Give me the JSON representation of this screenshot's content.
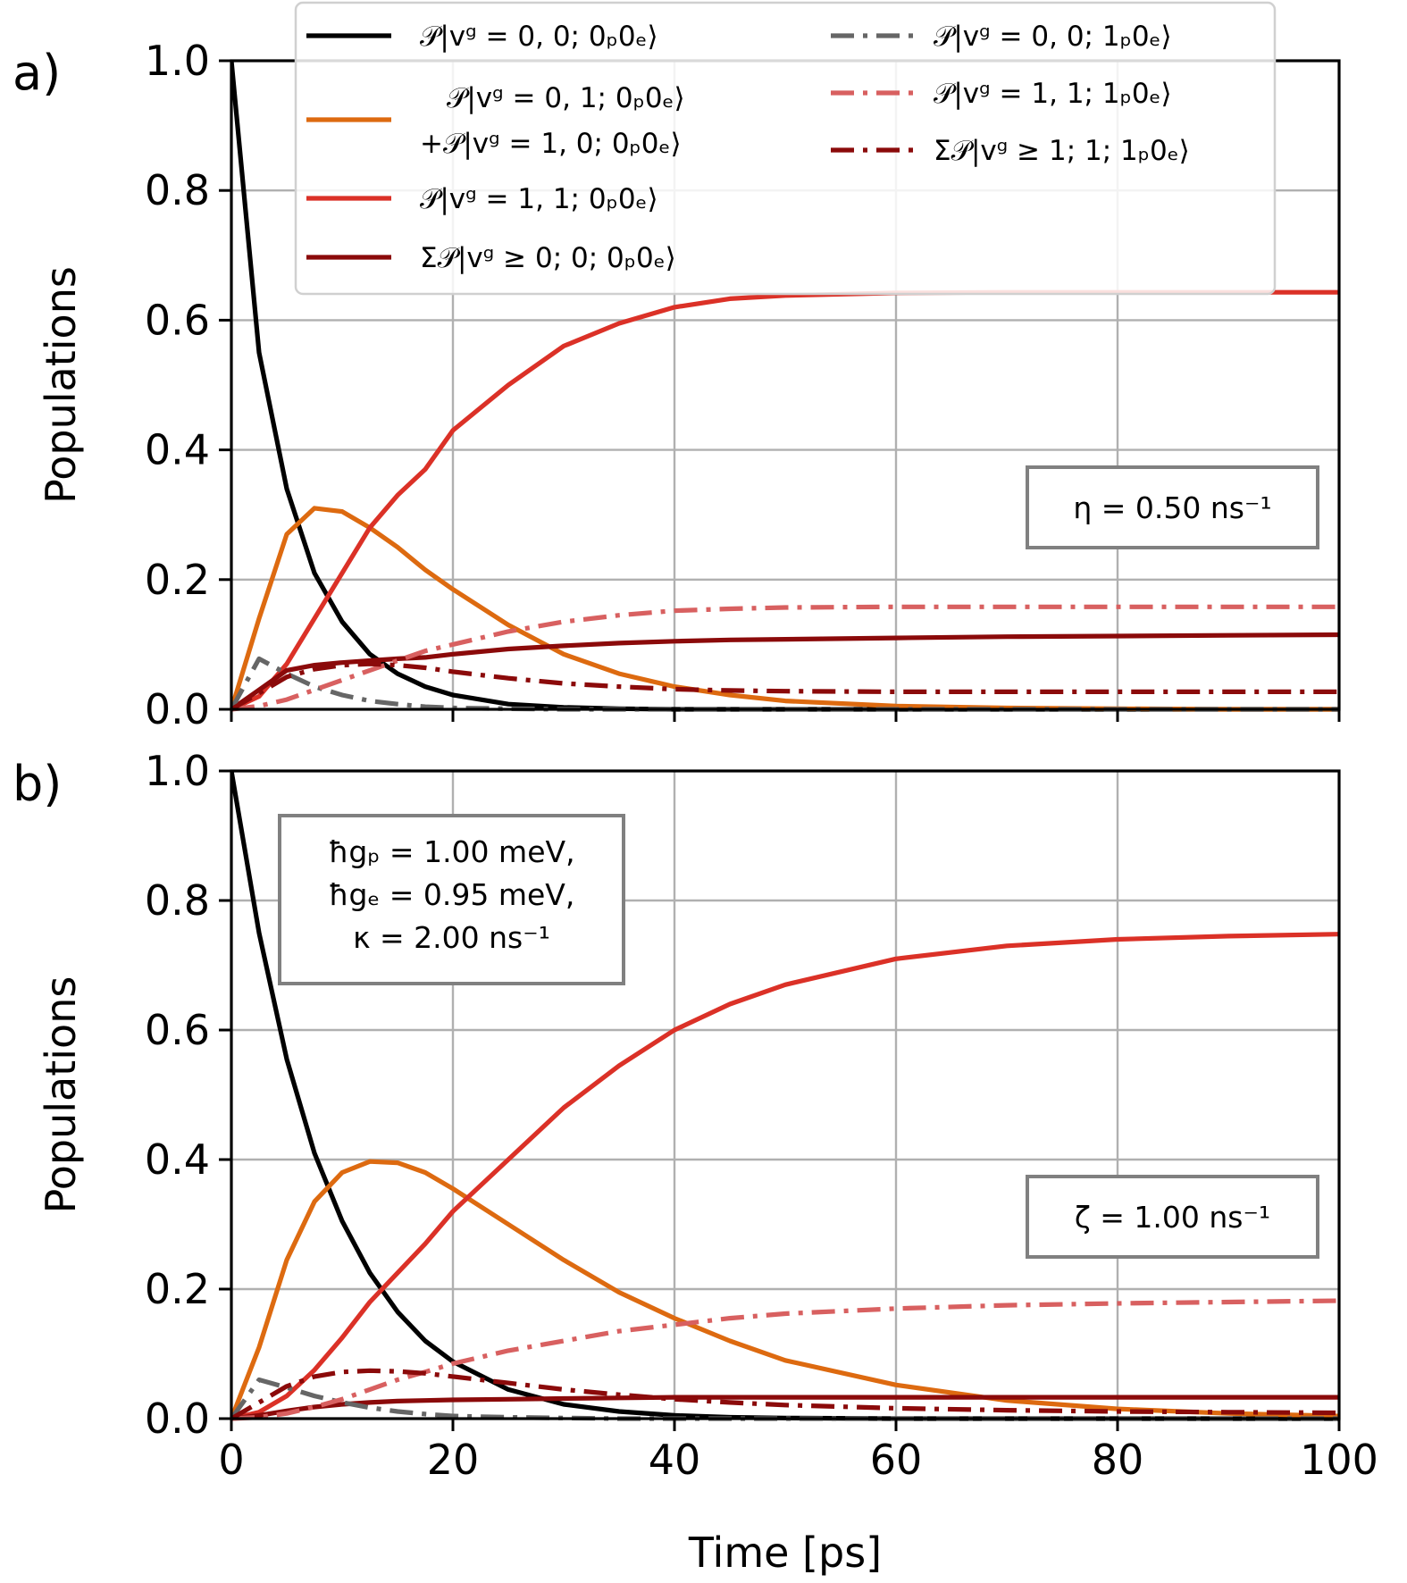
{
  "chart_data": [
    {
      "panel": "a)",
      "type": "line",
      "xlabel": "",
      "ylabel": "Populations",
      "xlim": [
        0,
        100
      ],
      "ylim": [
        0,
        1.0
      ],
      "xticks": [
        0,
        20,
        40,
        60,
        80,
        100
      ],
      "yticks": [
        0.0,
        0.2,
        0.4,
        0.6,
        0.8,
        1.0
      ],
      "ytick_labels": [
        "0.0",
        "0.2",
        "0.4",
        "0.6",
        "0.8",
        "1.0"
      ],
      "grid": true,
      "legend_placement": "top",
      "annotation": "η = 0.50 ns⁻¹",
      "annotation_placement": "center-right",
      "x": [
        0,
        2.5,
        5,
        7.5,
        10,
        12.5,
        15,
        17.5,
        20,
        25,
        30,
        35,
        40,
        45,
        50,
        60,
        70,
        80,
        90,
        100
      ],
      "series": [
        {
          "key": "s1",
          "values": [
            1.0,
            0.55,
            0.34,
            0.21,
            0.135,
            0.085,
            0.055,
            0.035,
            0.022,
            0.008,
            0.003,
            0.001,
            0.0,
            0.0,
            0.0,
            0.0,
            0.0,
            0.0,
            0.0,
            0.0
          ]
        },
        {
          "key": "s2",
          "values": [
            0.0,
            0.14,
            0.27,
            0.31,
            0.305,
            0.28,
            0.25,
            0.215,
            0.185,
            0.13,
            0.085,
            0.055,
            0.035,
            0.022,
            0.013,
            0.005,
            0.002,
            0.001,
            0.0,
            0.0
          ]
        },
        {
          "key": "s3",
          "values": [
            0.0,
            0.02,
            0.07,
            0.14,
            0.21,
            0.28,
            0.33,
            0.37,
            0.43,
            0.5,
            0.56,
            0.595,
            0.62,
            0.633,
            0.638,
            0.642,
            0.643,
            0.643,
            0.643,
            0.643
          ]
        },
        {
          "key": "s4",
          "values": [
            0.0,
            0.03,
            0.06,
            0.068,
            0.072,
            0.075,
            0.078,
            0.08,
            0.085,
            0.093,
            0.098,
            0.102,
            0.105,
            0.107,
            0.108,
            0.11,
            0.112,
            0.113,
            0.114,
            0.115
          ]
        },
        {
          "key": "s5",
          "values": [
            0.0,
            0.078,
            0.055,
            0.035,
            0.022,
            0.013,
            0.008,
            0.004,
            0.002,
            0.001,
            0.0,
            0.0,
            0.0,
            0.0,
            0.0,
            0.0,
            0.0,
            0.0,
            0.0,
            0.0
          ]
        },
        {
          "key": "s6",
          "values": [
            0.0,
            0.005,
            0.015,
            0.03,
            0.045,
            0.06,
            0.075,
            0.09,
            0.1,
            0.12,
            0.135,
            0.145,
            0.152,
            0.155,
            0.157,
            0.158,
            0.158,
            0.158,
            0.158,
            0.158
          ]
        },
        {
          "key": "s7",
          "values": [
            0.0,
            0.025,
            0.05,
            0.062,
            0.068,
            0.07,
            0.068,
            0.064,
            0.058,
            0.048,
            0.04,
            0.035,
            0.031,
            0.029,
            0.028,
            0.027,
            0.027,
            0.027,
            0.027,
            0.027
          ]
        }
      ]
    },
    {
      "panel": "b)",
      "type": "line",
      "xlabel": "Time [ps]",
      "ylabel": "Populations",
      "xlim": [
        0,
        100
      ],
      "ylim": [
        0,
        1.0
      ],
      "xticks": [
        0,
        20,
        40,
        60,
        80,
        100
      ],
      "xtick_labels": [
        "0",
        "20",
        "40",
        "60",
        "80",
        "100"
      ],
      "yticks": [
        0.0,
        0.2,
        0.4,
        0.6,
        0.8,
        1.0
      ],
      "ytick_labels": [
        "0.0",
        "0.2",
        "0.4",
        "0.6",
        "0.8",
        "1.0"
      ],
      "grid": true,
      "parameters_box": [
        "ħgₚ = 1.00 meV,",
        "ħgₑ = 0.95 meV,",
        "κ = 2.00 ns⁻¹"
      ],
      "parameters_placement": "top-left",
      "annotation": "ζ = 1.00 ns⁻¹",
      "annotation_placement": "center-right",
      "x": [
        0,
        2.5,
        5,
        7.5,
        10,
        12.5,
        15,
        17.5,
        20,
        25,
        30,
        35,
        40,
        45,
        50,
        60,
        70,
        80,
        90,
        100
      ],
      "series": [
        {
          "key": "s1",
          "values": [
            1.0,
            0.75,
            0.555,
            0.41,
            0.305,
            0.225,
            0.165,
            0.12,
            0.088,
            0.045,
            0.022,
            0.011,
            0.005,
            0.002,
            0.001,
            0.0,
            0.0,
            0.0,
            0.0,
            0.0
          ]
        },
        {
          "key": "s2",
          "values": [
            0.0,
            0.11,
            0.245,
            0.335,
            0.38,
            0.397,
            0.395,
            0.38,
            0.355,
            0.3,
            0.245,
            0.195,
            0.155,
            0.12,
            0.09,
            0.052,
            0.028,
            0.015,
            0.008,
            0.004
          ]
        },
        {
          "key": "s3",
          "values": [
            0.0,
            0.01,
            0.035,
            0.075,
            0.125,
            0.18,
            0.225,
            0.27,
            0.32,
            0.4,
            0.48,
            0.545,
            0.6,
            0.64,
            0.67,
            0.71,
            0.73,
            0.74,
            0.745,
            0.748
          ]
        },
        {
          "key": "s4",
          "values": [
            0.0,
            0.005,
            0.012,
            0.018,
            0.022,
            0.025,
            0.027,
            0.028,
            0.029,
            0.03,
            0.031,
            0.032,
            0.033,
            0.033,
            0.033,
            0.033,
            0.033,
            0.033,
            0.033,
            0.033
          ]
        },
        {
          "key": "s5",
          "values": [
            0.0,
            0.06,
            0.048,
            0.035,
            0.025,
            0.017,
            0.011,
            0.007,
            0.004,
            0.002,
            0.001,
            0.0,
            0.0,
            0.0,
            0.0,
            0.0,
            0.0,
            0.0,
            0.0,
            0.0
          ]
        },
        {
          "key": "s6",
          "values": [
            0.0,
            0.002,
            0.008,
            0.018,
            0.03,
            0.045,
            0.06,
            0.072,
            0.085,
            0.105,
            0.12,
            0.135,
            0.145,
            0.155,
            0.162,
            0.17,
            0.175,
            0.178,
            0.18,
            0.182
          ]
        },
        {
          "key": "s7",
          "values": [
            0.0,
            0.025,
            0.05,
            0.065,
            0.072,
            0.074,
            0.073,
            0.07,
            0.065,
            0.055,
            0.045,
            0.037,
            0.03,
            0.025,
            0.021,
            0.016,
            0.013,
            0.011,
            0.01,
            0.009
          ]
        }
      ]
    }
  ],
  "legend": {
    "s1": {
      "color": "#000000",
      "dash": "solid",
      "lines": [
        "𝒫|vᵍ = 0, 0; 0ₚ0ₑ⟩"
      ]
    },
    "s2": {
      "color": "#dd6a10",
      "dash": "solid",
      "lines": [
        "𝒫|vᵍ = 0, 1; 0ₚ0ₑ⟩",
        "+𝒫|vᵍ = 1, 0; 0ₚ0ₑ⟩"
      ]
    },
    "s3": {
      "color": "#db3127",
      "dash": "solid",
      "lines": [
        "𝒫|vᵍ = 1, 1; 0ₚ0ₑ⟩"
      ]
    },
    "s4": {
      "color": "#8b0a0a",
      "dash": "solid",
      "lines": [
        "Σ𝒫|vᵍ ≥ 0; 0; 0ₚ0ₑ⟩"
      ]
    },
    "s5": {
      "color": "#666666",
      "dash": "dashdot",
      "lines": [
        "𝒫|vᵍ = 0, 0; 1ₚ0ₑ⟩"
      ]
    },
    "s6": {
      "color": "#d86060",
      "dash": "dashdot",
      "lines": [
        "𝒫|vᵍ = 1, 1; 1ₚ0ₑ⟩"
      ]
    },
    "s7": {
      "color": "#8b0a0a",
      "dash": "dashdot",
      "lines": [
        "Σ𝒫|vᵍ ≥ 1; 1; 1ₚ0ₑ⟩"
      ]
    }
  }
}
